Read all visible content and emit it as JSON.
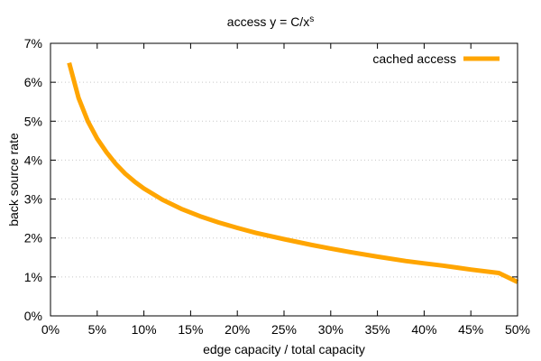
{
  "chart_data": {
    "type": "line",
    "title_main": "access y = C/x",
    "title_sup": "s",
    "xlabel": "edge capacity / total capacity",
    "ylabel": "back source rate",
    "xlim": [
      0,
      50
    ],
    "ylim": [
      0,
      7
    ],
    "x_ticks": [
      0,
      5,
      10,
      15,
      20,
      25,
      30,
      35,
      40,
      45,
      50
    ],
    "x_tick_labels": [
      "0%",
      "5%",
      "10%",
      "15%",
      "20%",
      "25%",
      "30%",
      "35%",
      "40%",
      "45%",
      "50%"
    ],
    "y_ticks": [
      0,
      1,
      2,
      3,
      4,
      5,
      6,
      7
    ],
    "y_tick_labels": [
      "0%",
      "1%",
      "2%",
      "3%",
      "4%",
      "5%",
      "6%",
      "7%"
    ],
    "grid": true,
    "legend_position": "top-right",
    "series": [
      {
        "name": "cached access",
        "color": "#FFA500",
        "x": [
          2,
          3,
          4,
          5,
          6,
          7,
          8,
          9,
          10,
          12,
          14,
          16,
          18,
          20,
          22,
          25,
          28,
          30,
          32,
          35,
          38,
          40,
          42,
          45,
          48,
          50
        ],
        "y": [
          6.5,
          5.6,
          5.0,
          4.55,
          4.2,
          3.9,
          3.65,
          3.45,
          3.27,
          2.98,
          2.75,
          2.56,
          2.4,
          2.26,
          2.13,
          1.97,
          1.82,
          1.73,
          1.64,
          1.52,
          1.41,
          1.35,
          1.29,
          1.19,
          1.1,
          0.87
        ]
      }
    ]
  }
}
